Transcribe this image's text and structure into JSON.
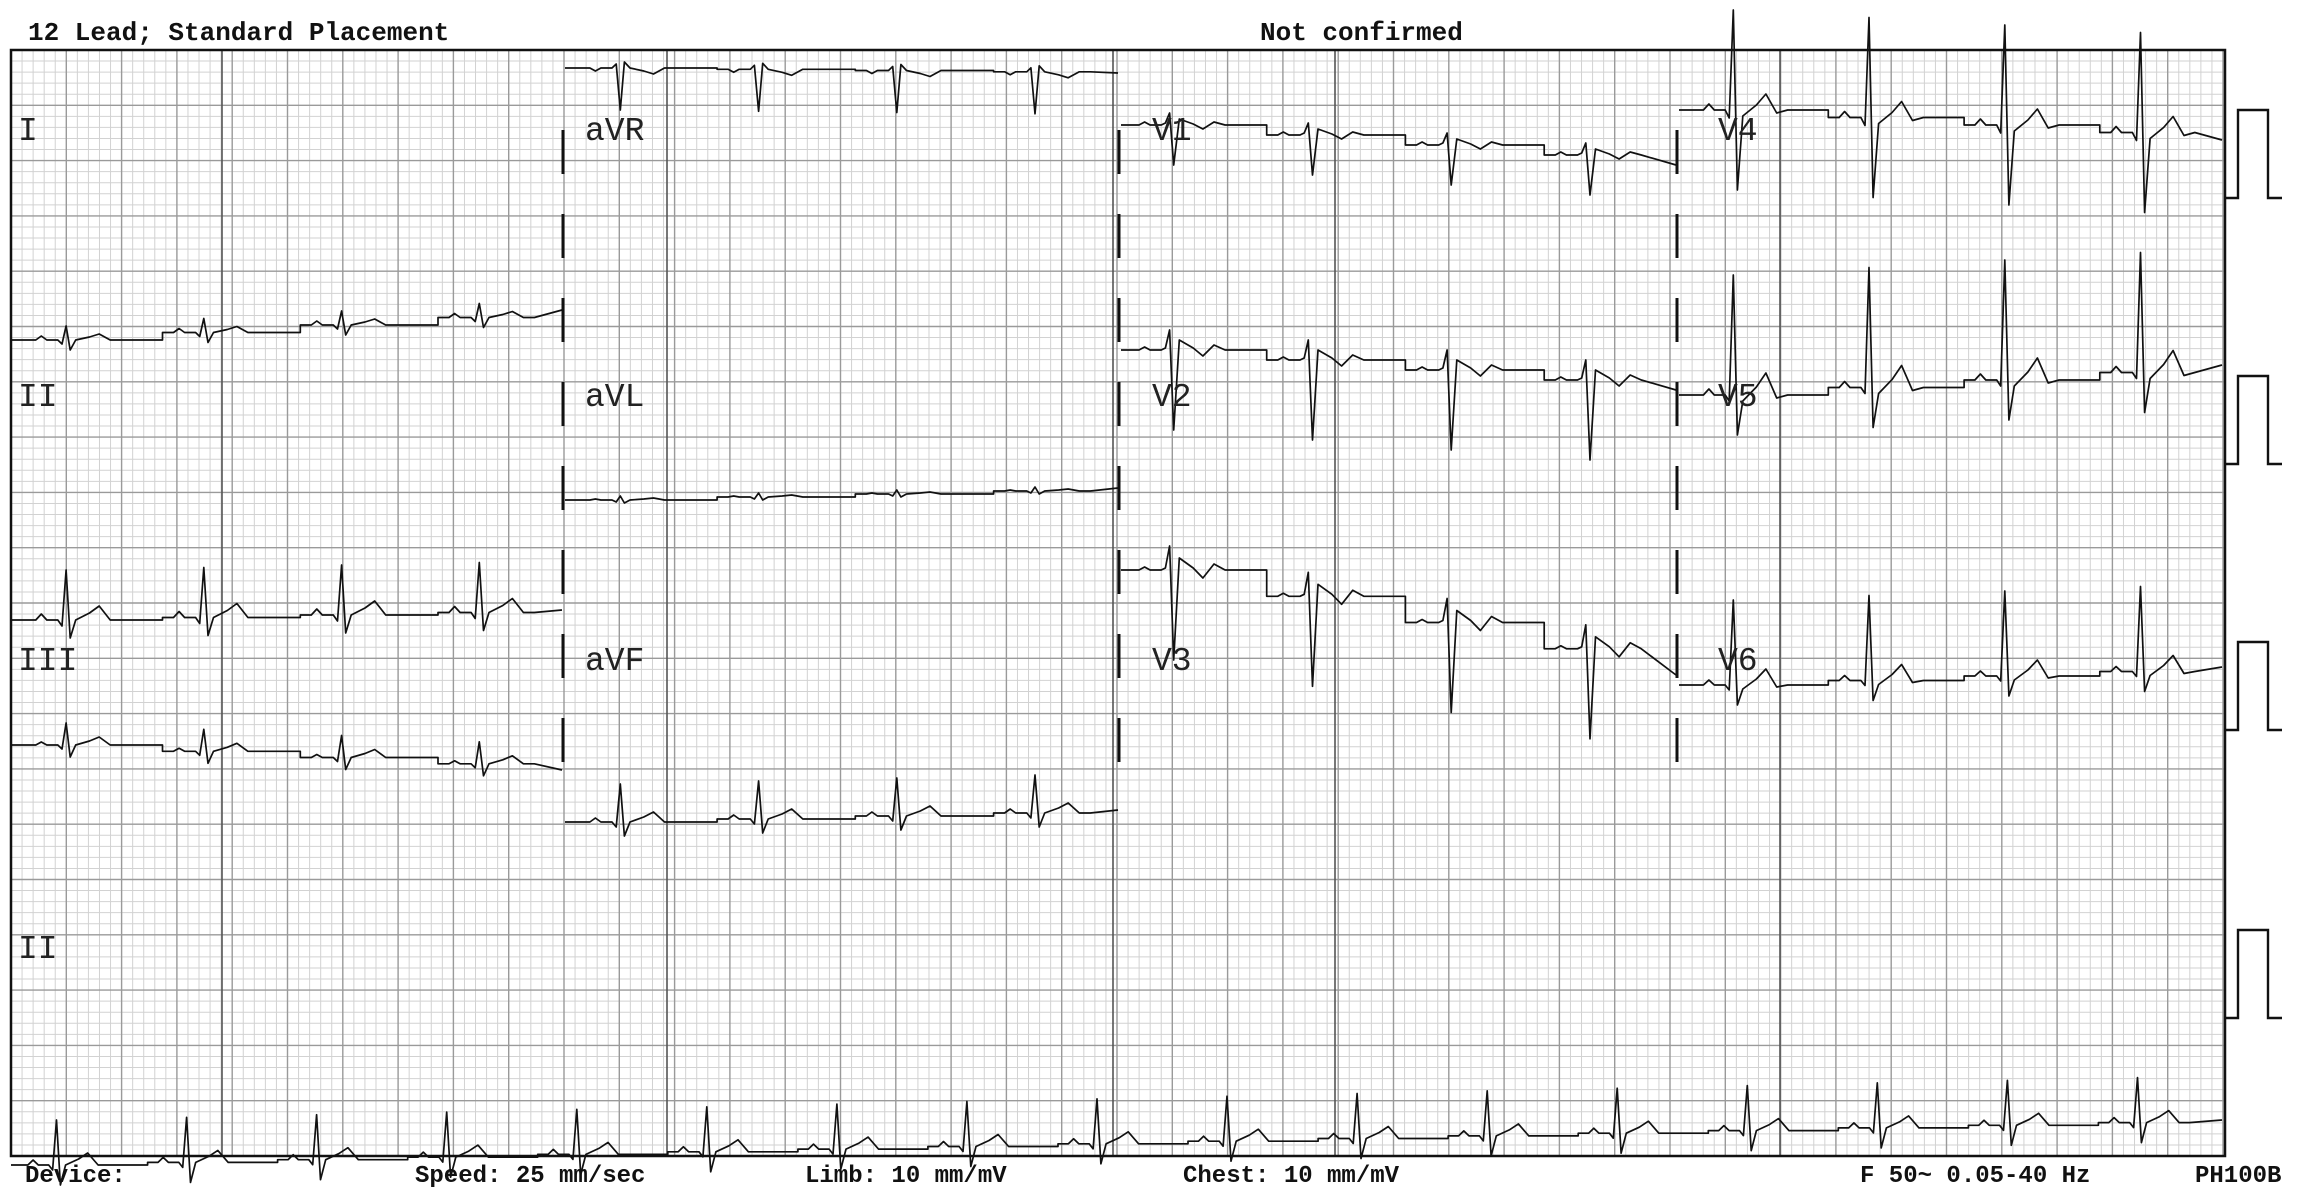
{
  "header": {
    "title": "12 Lead; Standard Placement",
    "status": "Not confirmed"
  },
  "footer": {
    "device": "Device:",
    "speed": "Speed: 25 mm/sec",
    "limb": "Limb: 10 mm/mV",
    "chest": "Chest: 10 mm/mV",
    "filter": "F 50~ 0.05-40 Hz",
    "model": "PH100B"
  },
  "leads": {
    "I": "I",
    "II": "II",
    "III": "III",
    "aVR": "aVR",
    "aVL": "aVL",
    "aVF": "aVF",
    "V1": "V1",
    "V2": "V2",
    "V3": "V3",
    "V4": "V4",
    "V5": "V5",
    "V6": "V6",
    "rhythm": "II"
  },
  "colors": {
    "grid_minor": "#d2d2d2",
    "grid_major": "#9a9a9a",
    "trace": "#111111"
  }
}
